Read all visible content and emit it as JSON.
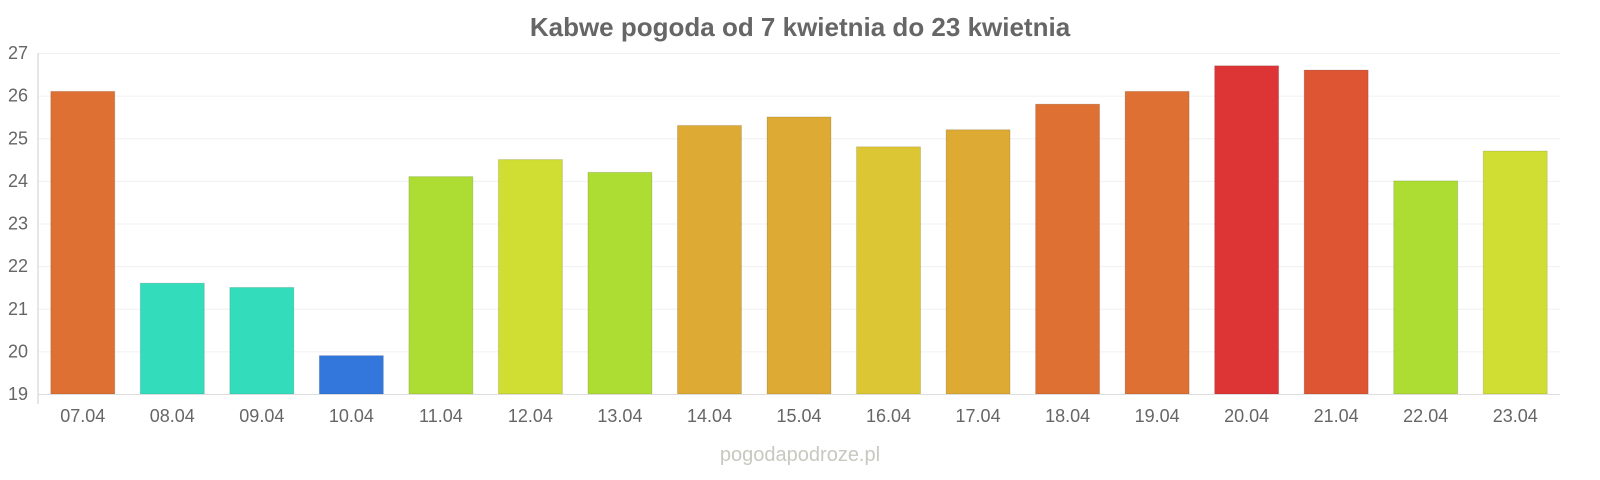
{
  "chart_data": {
    "type": "bar",
    "title": "Kabwe pogoda od 7 kwietnia do 23 kwietnia",
    "xlabel": "",
    "ylabel": "",
    "ylim": [
      19,
      27
    ],
    "yticks": [
      19,
      20,
      21,
      22,
      23,
      24,
      25,
      26,
      27
    ],
    "grid": true,
    "categories": [
      "07.04",
      "08.04",
      "09.04",
      "10.04",
      "11.04",
      "12.04",
      "13.04",
      "14.04",
      "15.04",
      "16.04",
      "17.04",
      "18.04",
      "19.04",
      "20.04",
      "21.04",
      "22.04",
      "23.04"
    ],
    "values": [
      26.1,
      21.6,
      21.5,
      19.9,
      24.1,
      24.5,
      24.2,
      25.3,
      25.5,
      24.8,
      25.2,
      25.8,
      26.1,
      26.7,
      26.6,
      24.0,
      24.7
    ],
    "colors": [
      "#de7033",
      "#33ddbb",
      "#33ddbb",
      "#3377dd",
      "#addd33",
      "#d0dd33",
      "#addd33",
      "#ddaa33",
      "#ddaa33",
      "#ddc633",
      "#ddaa33",
      "#de7033",
      "#de7033",
      "#dd3535",
      "#dd5533",
      "#addd33",
      "#d0dd33"
    ]
  },
  "watermark": "pogodapodroze.pl"
}
